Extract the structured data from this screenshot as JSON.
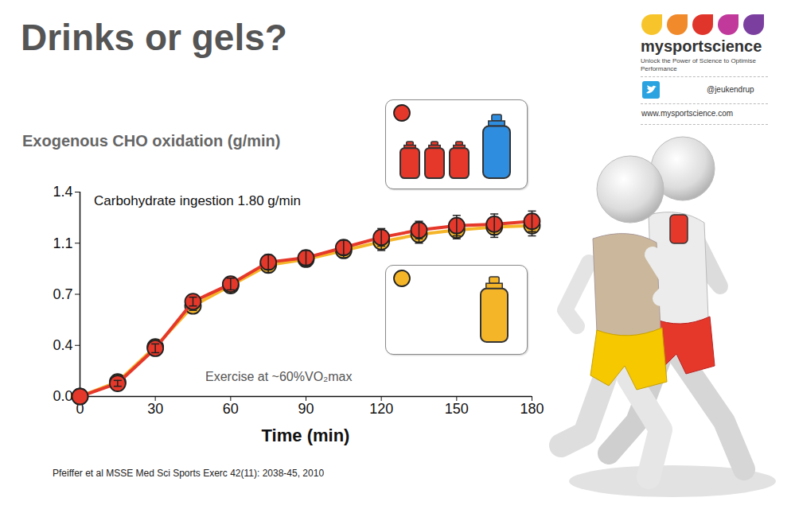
{
  "chart_data": {
    "type": "line",
    "title": "Drinks or gels?",
    "ylabel": "Exogenous CHO oxidation (g/min)",
    "xlabel": "Time (min)",
    "annotations": [
      "Carbohydrate ingestion 1.80 g/min",
      "Exercise at ~60%VO₂max"
    ],
    "source": "Pfeiffer et al MSSE Med Sci Sports Exerc 42(11): 2038-45, 2010",
    "x": [
      0,
      15,
      30,
      45,
      60,
      75,
      90,
      105,
      120,
      135,
      150,
      165,
      180
    ],
    "series": [
      {
        "color": "#e5382a",
        "marker": "circle",
        "values": [
          0,
          0.09,
          0.33,
          0.65,
          0.77,
          0.92,
          0.95,
          1.02,
          1.09,
          1.14,
          1.17,
          1.18,
          1.2
        ],
        "errors": [
          0,
          0.02,
          0.03,
          0.03,
          0.04,
          0.05,
          0.05,
          0.05,
          0.06,
          0.06,
          0.07,
          0.07,
          0.07
        ]
      },
      {
        "color": "#f5b529",
        "marker": "circle",
        "values": [
          0,
          0.1,
          0.34,
          0.62,
          0.76,
          0.9,
          0.94,
          1.0,
          1.06,
          1.11,
          1.14,
          1.16,
          1.17
        ],
        "errors": [
          0,
          0.02,
          0.03,
          0.03,
          0.04,
          0.05,
          0.05,
          0.05,
          0.06,
          0.06,
          0.06,
          0.07,
          0.07
        ]
      }
    ],
    "xlim": [
      0,
      180
    ],
    "xticks": [
      0,
      30,
      60,
      90,
      120,
      150,
      180
    ],
    "ylim": [
      0,
      1.4
    ],
    "yticks": [
      {
        "value": 0,
        "label": "0.0"
      },
      {
        "value": 0.35,
        "label": "0.4"
      },
      0.7,
      {
        "value": 1.05,
        "label": "1.1"
      },
      1.4
    ],
    "grid": false,
    "legend": "right"
  },
  "logo": {
    "name": "mysportscience",
    "tagline": "Unlock the Power of Science to Optimise Performance",
    "twitter": "@jeukendrup",
    "website": "www.mysportscience.com"
  }
}
